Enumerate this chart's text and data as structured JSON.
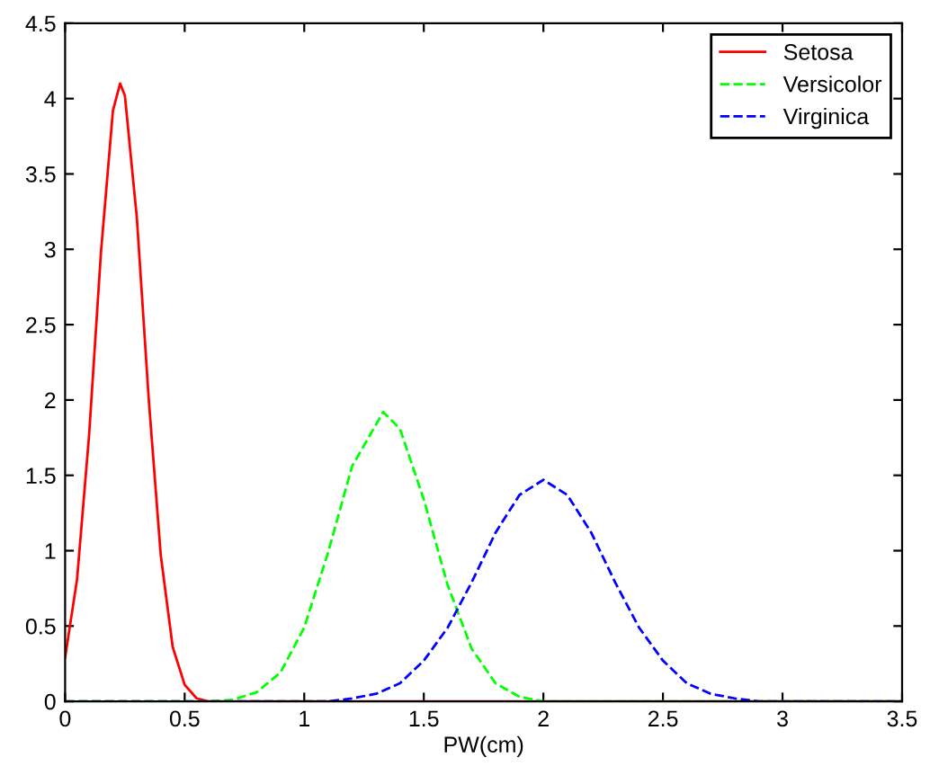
{
  "chart_data": {
    "type": "line",
    "xlabel": "PW(cm)",
    "xlim": [
      0,
      3.5
    ],
    "xticks": [
      0,
      0.5,
      1,
      1.5,
      2,
      2.5,
      3,
      3.5
    ],
    "ylim": [
      0,
      4.5
    ],
    "yticks": [
      0,
      0.5,
      1,
      1.5,
      2,
      2.5,
      3,
      3.5,
      4,
      4.5
    ],
    "legend": "top right",
    "grid": false,
    "series": [
      {
        "name": "Setosa",
        "color": "#ff0000",
        "line_style": "solid",
        "x": [
          0,
          0.05,
          0.1,
          0.15,
          0.2,
          0.23,
          0.25,
          0.3,
          0.35,
          0.4,
          0.45,
          0.5,
          0.55,
          0.6,
          1.0,
          3.5
        ],
        "values": [
          0.29,
          0.81,
          1.76,
          2.98,
          3.92,
          4.1,
          4.02,
          3.21,
          2.0,
          0.97,
          0.36,
          0.11,
          0.02,
          0,
          0,
          0
        ]
      },
      {
        "name": "Versicolor",
        "color": "#00ff00",
        "line_style": "dashed",
        "x": [
          0,
          0.6,
          0.7,
          0.8,
          0.9,
          1.0,
          1.1,
          1.2,
          1.33,
          1.4,
          1.5,
          1.6,
          1.7,
          1.8,
          1.9,
          2.0,
          2.1,
          3.5
        ],
        "values": [
          0,
          0,
          0.01,
          0.06,
          0.19,
          0.49,
          0.99,
          1.56,
          1.92,
          1.81,
          1.34,
          0.77,
          0.35,
          0.12,
          0.03,
          0,
          0,
          0
        ]
      },
      {
        "name": "Virginica",
        "color": "#0000ff",
        "line_style": "dashed",
        "x": [
          0,
          1.1,
          1.2,
          1.3,
          1.4,
          1.5,
          1.6,
          1.7,
          1.8,
          1.9,
          2.0,
          2.1,
          2.2,
          2.3,
          2.4,
          2.5,
          2.6,
          2.7,
          2.8,
          2.9,
          3.5
        ],
        "values": [
          0,
          0,
          0.02,
          0.05,
          0.12,
          0.27,
          0.49,
          0.79,
          1.12,
          1.37,
          1.47,
          1.37,
          1.12,
          0.79,
          0.49,
          0.27,
          0.12,
          0.05,
          0.02,
          0,
          0
        ]
      }
    ]
  }
}
